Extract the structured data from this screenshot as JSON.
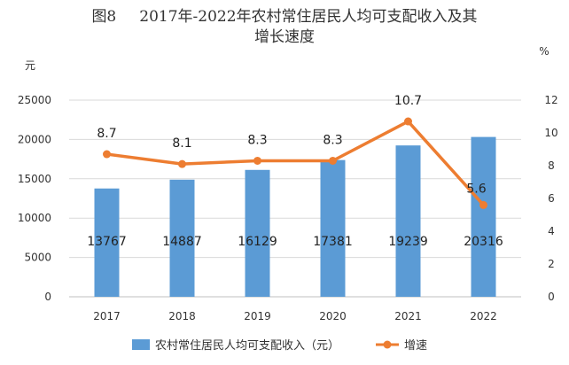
{
  "title": {
    "figure_no": "图8",
    "line1": "2017年-2022年农村常住居民人均可支配收入及其",
    "line2": "增长速度"
  },
  "axes": {
    "left_unit": "元",
    "right_unit": "%"
  },
  "colors": {
    "bar": "#5B9BD5",
    "line": "#ED7D31",
    "grid": "#D9D9D9"
  },
  "chart_data": {
    "type": "bar",
    "categories": [
      "2017",
      "2018",
      "2019",
      "2020",
      "2021",
      "2022"
    ],
    "series": [
      {
        "name": "农村常住居民人均可支配收入（元）",
        "type": "bar",
        "axis": "left",
        "values": [
          13767,
          14887,
          16129,
          17381,
          19239,
          20316
        ]
      },
      {
        "name": "增速",
        "type": "line",
        "axis": "right",
        "values": [
          8.7,
          8.1,
          8.3,
          8.3,
          10.7,
          5.6
        ]
      }
    ],
    "ylim_left": [
      0,
      25000
    ],
    "yticks_left": [
      0,
      5000,
      10000,
      15000,
      20000,
      25000
    ],
    "ylim_right": [
      0,
      12
    ],
    "yticks_right": [
      0,
      2,
      4,
      6,
      8,
      10,
      12
    ],
    "grid": true,
    "legend": "bottom"
  }
}
